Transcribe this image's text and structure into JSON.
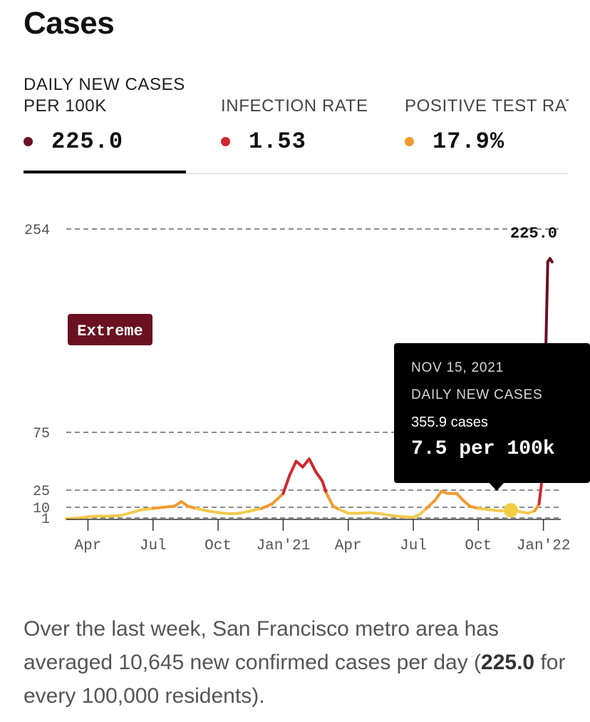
{
  "page": {
    "title": "Cases"
  },
  "tabs": [
    {
      "label_line1": "DAILY NEW CASES",
      "label_line2": "PER 100K",
      "value": "225.0",
      "dot_color": "#6b1020",
      "active": true
    },
    {
      "label_line1": "INFECTION RATE",
      "value": "1.53",
      "dot_color": "#d0282e",
      "active": false
    },
    {
      "label_line1": "POSITIVE TEST RATE",
      "value": "17.9%",
      "dot_color": "#f29a2e",
      "active": false
    }
  ],
  "chart_data": {
    "type": "line",
    "title": "Daily new cases per 100K",
    "ylim": [
      0,
      254
    ],
    "y_gridlines": [
      1,
      10,
      25,
      75,
      254
    ],
    "y_tick_labels": [
      "1",
      "10",
      "25",
      "75",
      "254"
    ],
    "x_tick_labels": [
      "Apr",
      "Jul",
      "Oct",
      "Jan'21",
      "Apr",
      "Jul",
      "Oct",
      "Jan'22"
    ],
    "x_tick_months": [
      1,
      4,
      7,
      10,
      13,
      16,
      19,
      22
    ],
    "x_range_months": [
      0,
      22.8
    ],
    "last_value_label": "225.0",
    "risk_label": "Extreme",
    "risk_colors": {
      "low": "#f2c94c",
      "medium": "#f29a2e",
      "high": "#d0282e",
      "extreme": "#6b1020"
    },
    "axis_color": "#333333",
    "grid_color": "#666666",
    "series": [
      {
        "name": "Daily new cases per 100K",
        "x_months": [
          0,
          0.5,
          1,
          1.5,
          2,
          2.5,
          3,
          3.5,
          4,
          4.5,
          5,
          5.3,
          5.6,
          6,
          6.5,
          7,
          7.5,
          8,
          8.5,
          9,
          9.5,
          10,
          10.3,
          10.6,
          10.9,
          11.2,
          11.5,
          11.8,
          12,
          12.3,
          12.6,
          13,
          13.5,
          14,
          14.5,
          15,
          15.5,
          16,
          16.3,
          16.6,
          17,
          17.3,
          17.6,
          18,
          18.3,
          18.6,
          19,
          19.5,
          20,
          20.5,
          21,
          21.3,
          21.6,
          21.8,
          22,
          22.1,
          22.2,
          22.3,
          22.4
        ],
        "values": [
          0.5,
          0.8,
          2,
          2.5,
          2.5,
          3,
          5.5,
          8,
          9,
          10,
          11,
          15,
          11,
          9,
          7,
          5.5,
          4.5,
          5,
          7,
          9,
          13,
          22,
          38,
          50,
          45,
          52,
          41,
          33,
          22,
          11,
          8,
          5,
          5,
          5.5,
          4.5,
          3,
          2,
          1.5,
          4,
          9,
          16,
          24,
          22,
          22,
          16,
          11,
          9,
          8,
          7,
          7.5,
          6,
          5,
          7,
          13,
          45,
          140,
          225,
          228,
          225
        ]
      }
    ],
    "highlight_point": {
      "x_months": 20.5,
      "value": 7.5,
      "color": "#f2cd3f"
    }
  },
  "tooltip": {
    "date": "NOV 15, 2021",
    "label": "DAILY NEW CASES",
    "cases": "355.9 cases",
    "rate": "7.5 per 100k"
  },
  "summary": {
    "text_before": "Over the last week, San Francisco metro area has averaged 10,645 new confirmed cases per day (",
    "bold_value": "225.0",
    "text_after": " for every 100,000 residents)."
  }
}
